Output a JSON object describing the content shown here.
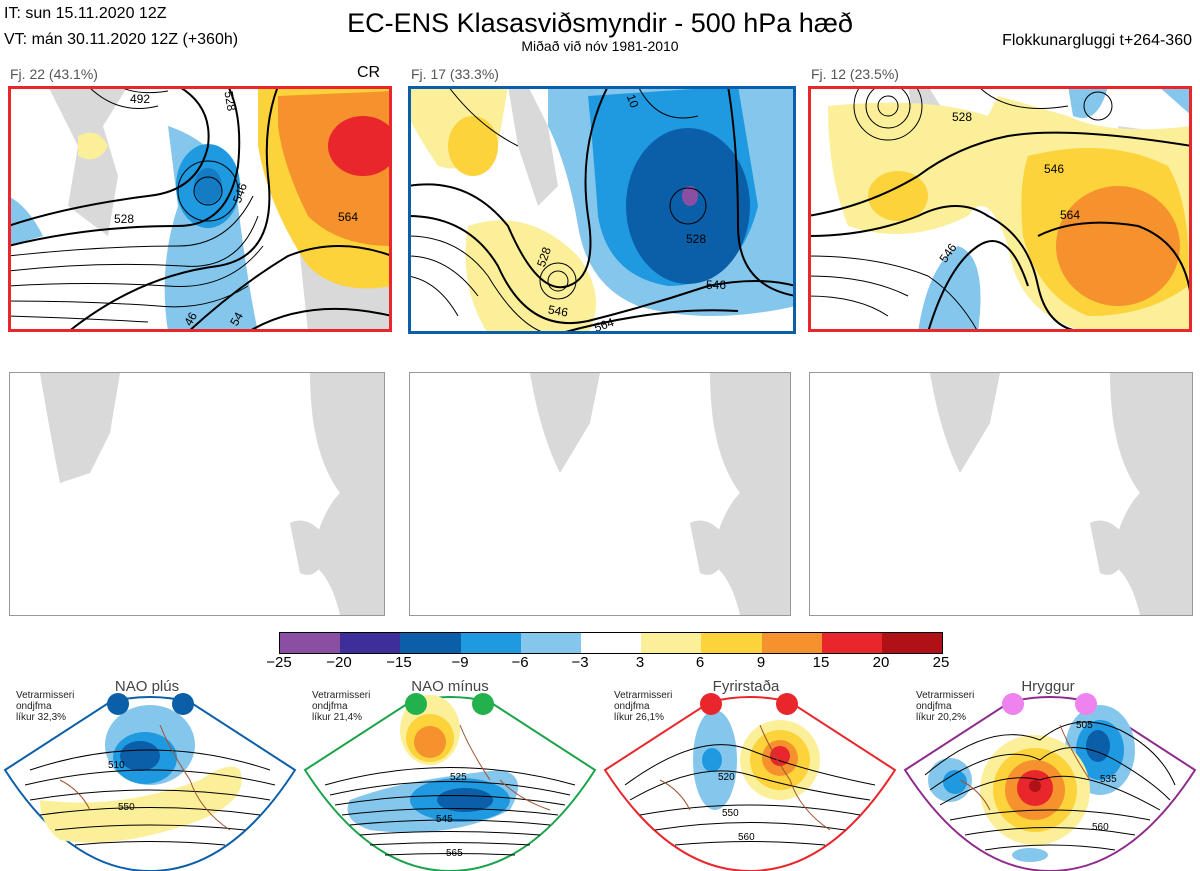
{
  "header": {
    "init_time": "IT: sun 15.11.2020 12Z",
    "valid_time": "VT: mán 30.11.2020 12Z  (+360h)",
    "title": "EC-ENS Klasasviðsmyndir - 500 hPa hæð",
    "subtitle": "Miðað við nóv 1981-2010",
    "window": "Flokkunargluggi t+264-360"
  },
  "panels": [
    {
      "label": "Fj. 22 (43.1%)",
      "tag": "CR",
      "frame_color": "#e8262b"
    },
    {
      "label": "Fj. 17 (33.3%)",
      "tag": "",
      "frame_color": "#0b5ea8"
    },
    {
      "label": "Fj. 12 (23.5%)",
      "tag": "",
      "frame_color": "#e8262b"
    }
  ],
  "contour_labels": {
    "panel1": [
      "492",
      "528",
      "546",
      "528",
      "564",
      "46",
      "54"
    ],
    "panel2": [
      "528",
      "546",
      "528",
      "546",
      "564",
      "10"
    ],
    "panel3": [
      "528",
      "546",
      "564",
      "546"
    ]
  },
  "colorbar": {
    "colors": [
      "#8a4fa3",
      "#3d2e9a",
      "#0b5ea8",
      "#1f9ae0",
      "#84c6ec",
      "#ffffff",
      "#fcef9a",
      "#fdd33b",
      "#f5922e",
      "#e8262b",
      "#b01116"
    ],
    "ticks": [
      "−25",
      "−20",
      "−15",
      "−9",
      "−6",
      "−3",
      "3",
      "6",
      "9",
      "15",
      "20",
      "25"
    ]
  },
  "climatology": [
    {
      "name": "NAO plús",
      "freq_lines": [
        "Vetrarmisseri",
        "ondjfma",
        "líkur 32,3%"
      ],
      "color": "#0b5ea8",
      "dot_color": "#0b5ea8",
      "labels": [
        "510",
        "550"
      ]
    },
    {
      "name": "NAO mínus",
      "freq_lines": [
        "Vetrarmisseri",
        "ondjfma",
        "líkur 21,4%"
      ],
      "color": "#1aa34a",
      "dot_color": "#22b14c",
      "labels": [
        "525",
        "545",
        "565"
      ]
    },
    {
      "name": "Fyrirstaða",
      "freq_lines": [
        "Vetrarmisseri",
        "ondjfma",
        "líkur 26,1%"
      ],
      "color": "#e8262b",
      "dot_color": "#e8262b",
      "labels": [
        "520",
        "550",
        "560"
      ]
    },
    {
      "name": "Hryggur",
      "freq_lines": [
        "Vetrarmisseri",
        "ondjfma",
        "líkur 20,2%"
      ],
      "color": "#8e2a8c",
      "dot_color": "#ee82ee",
      "labels": [
        "505",
        "535",
        "560"
      ]
    }
  ]
}
